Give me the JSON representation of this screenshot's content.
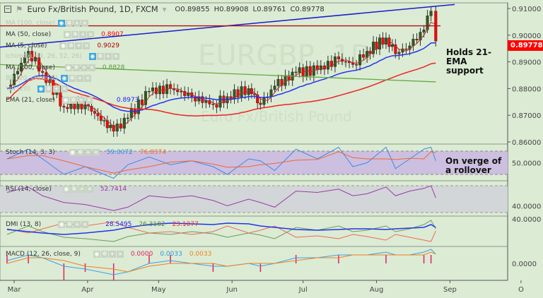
{
  "header": {
    "symbol": "Euro Fx/British Pound, 1D, FXCM",
    "open": "O0.89855",
    "high": "H0.89908",
    "low": "L0.89761",
    "close": "C0.89778"
  },
  "legends": {
    "ma100": "MA (100, close)",
    "ma50": "MA (50, close)",
    "ma50_val": "0.8907",
    "ma5": "MA (5, close)",
    "ma5_val": "0.9029",
    "ichimoku": "Ichimoku (9, 26, 52, 26)",
    "ma200": "MA (200, close)",
    "ma200_val": "0.8828",
    "bb": "BB (20, close, 2)",
    "vol": "Vol (20)",
    "ema21": "EMA (21, close)",
    "ema21_val": "0.8973",
    "stoch": "Stoch (14, 3, 3)",
    "stoch_k": "59.0072",
    "stoch_d": "76.8374",
    "rsi": "RSI (14, close)",
    "rsi_val": "52.7414",
    "dmi": "DMI (13, 8)",
    "dmi_adx": "28.5495",
    "dmi_plus": "26.3182",
    "dmi_minus": "23.1077",
    "macd": "MACD (12, 26, close, 9)",
    "macd_hist": "0.0000",
    "macd_line": "0.0033",
    "macd_signal": "0.0033"
  },
  "watermark": "EURGBP, 1D",
  "watermark2": "Euro Fx/British Pound",
  "annotations": {
    "main": "Holds 21-EMA support",
    "stoch": "On verge of a rollover"
  },
  "last_price": "0.89778",
  "colors": {
    "up": "#2e5b1e",
    "down": "#f00",
    "ema21": "#2233ee",
    "ma50": "#ee2222",
    "ma200": "#66aa44",
    "trend_blue": "#1a1acc",
    "resist_red": "#b01010"
  },
  "chart_data": {
    "type": "candlestick",
    "title": "Euro Fx/British Pound, 1D, FXCM",
    "x_unit": "days since Mar 1",
    "x": [
      -3,
      6,
      12,
      21,
      30,
      42,
      48,
      57,
      66,
      75,
      84,
      90,
      99,
      104,
      110,
      119,
      128,
      137,
      143,
      149,
      157,
      161,
      167,
      173,
      176,
      178
    ],
    "close": [
      0.88,
      0.894,
      0.886,
      0.873,
      0.874,
      0.864,
      0.869,
      0.879,
      0.88,
      0.877,
      0.874,
      0.877,
      0.88,
      0.874,
      0.881,
      0.886,
      0.887,
      0.891,
      0.889,
      0.894,
      0.899,
      0.893,
      0.896,
      0.902,
      0.909,
      0.8978
    ],
    "x_ticks": [
      {
        "d": 0,
        "label": "Mar"
      },
      {
        "d": 31,
        "label": "Apr"
      },
      {
        "d": 61,
        "label": "May"
      },
      {
        "d": 92,
        "label": "Jun"
      },
      {
        "d": 122,
        "label": "Jul"
      },
      {
        "d": 153,
        "label": "Aug"
      },
      {
        "d": 184,
        "label": "Sep"
      },
      {
        "d": 214,
        "label": "O"
      }
    ],
    "y_ticks": [
      "0.91000",
      "0.90000",
      "0.89000",
      "0.88000",
      "0.87000",
      "0.86000"
    ],
    "ylim": [
      0.8595,
      0.9115
    ],
    "trendline": {
      "from": [
        -6,
        0.8955
      ],
      "to": [
        186,
        0.9115
      ]
    },
    "resistance": 0.9035,
    "ma200": {
      "from": 0.889,
      "to": 0.8825
    },
    "stoch": {
      "k": [
        60,
        85,
        60,
        20,
        40,
        10,
        45,
        65,
        45,
        55,
        40,
        20,
        60,
        55,
        30,
        85,
        60,
        90,
        40,
        50,
        90,
        35,
        60,
        85,
        90,
        55
      ],
      "ticks": [
        "50.0000"
      ],
      "bands": [
        80,
        20
      ]
    },
    "rsi": {
      "values": [
        60,
        68,
        55,
        45,
        42,
        33,
        38,
        55,
        52,
        55,
        48,
        40,
        50,
        45,
        38,
        62,
        60,
        65,
        55,
        58,
        68,
        55,
        62,
        66,
        70,
        52
      ],
      "ticks": [
        "40.0000"
      ],
      "bands": [
        70,
        30
      ]
    },
    "dmi": {
      "adx": [
        25,
        22,
        20,
        18,
        20,
        24,
        28,
        32,
        34,
        33,
        32,
        34,
        33,
        30,
        28,
        25,
        24,
        25,
        26,
        26,
        25,
        26,
        27,
        28,
        32,
        28
      ],
      "plus": [
        18,
        30,
        22,
        14,
        12,
        8,
        15,
        20,
        18,
        22,
        19,
        14,
        20,
        17,
        12,
        28,
        24,
        30,
        22,
        24,
        30,
        22,
        26,
        32,
        38,
        26
      ],
      "minus": [
        26,
        20,
        26,
        34,
        30,
        36,
        28,
        20,
        22,
        18,
        22,
        30,
        20,
        24,
        30,
        14,
        16,
        12,
        18,
        15,
        10,
        18,
        14,
        10,
        8,
        23
      ],
      "ticks": [
        "40.0000"
      ]
    },
    "macd": {
      "line": [
        0.001,
        0.003,
        0.002,
        -0.001,
        -0.002,
        -0.004,
        -0.003,
        0.0,
        0.001,
        0.0,
        -0.001,
        -0.001,
        0.0,
        -0.001,
        0.0,
        0.002,
        0.002,
        0.003,
        0.003,
        0.003,
        0.004,
        0.003,
        0.003,
        0.004,
        0.005,
        0.0033
      ],
      "signal": [
        0.0,
        0.002,
        0.002,
        0.001,
        -0.001,
        -0.002,
        -0.003,
        -0.001,
        0.0,
        0.0,
        0.0,
        -0.001,
        0.0,
        0.0,
        0.0,
        0.001,
        0.002,
        0.002,
        0.003,
        0.003,
        0.003,
        0.003,
        0.003,
        0.003,
        0.004,
        0.0033
      ],
      "ticks": [
        "0.0000"
      ]
    }
  }
}
